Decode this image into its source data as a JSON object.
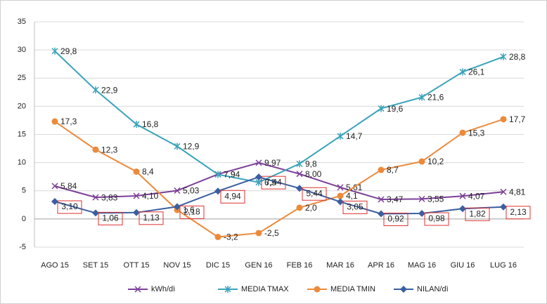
{
  "chart_data": {
    "type": "line",
    "categories": [
      "AGO 15",
      "SET 15",
      "OTT 15",
      "NOV 15",
      "DIC 15",
      "GEN 16",
      "FEB 16",
      "MAR 16",
      "APR 16",
      "MAG 16",
      "GIU 16",
      "LUG 16"
    ],
    "series": [
      {
        "name": "kWh/dì",
        "color": "#7b3f98",
        "marker": "x",
        "values": [
          5.84,
          3.83,
          4.1,
          5.03,
          7.94,
          9.97,
          8.0,
          5.61,
          3.47,
          3.55,
          4.07,
          4.81
        ],
        "value_labels": [
          "5,84",
          "3,83",
          "4,10",
          "5,03",
          "7,94",
          "9,97",
          "8,00",
          "5,61",
          "3,47",
          "3,55",
          "4,07",
          "4,81"
        ]
      },
      {
        "name": "MEDIA TMAX",
        "color": "#3aa3ba",
        "marker": "star",
        "values": [
          29.8,
          22.9,
          16.8,
          12.9,
          7.9,
          6.5,
          9.8,
          14.7,
          19.6,
          21.6,
          26.1,
          28.8
        ],
        "value_labels": [
          "29,8",
          "22,9",
          "16,8",
          "12,9",
          "7,9",
          "6,5",
          "9,8",
          "14,7",
          "19,6",
          "21,6",
          "26,1",
          "28,8"
        ]
      },
      {
        "name": "MEDIA TMIN",
        "color": "#ec8a3c",
        "marker": "circle",
        "values": [
          17.3,
          12.3,
          8.4,
          1.6,
          -3.2,
          -2.5,
          2.0,
          4.1,
          8.7,
          10.2,
          15.3,
          17.7
        ],
        "value_labels": [
          "17,3",
          "12,3",
          "8,4",
          "1,6",
          "-3,2",
          "-2,5",
          "2,0",
          "4,1",
          "8,7",
          "10,2",
          "15,3",
          "17,7"
        ]
      },
      {
        "name": "NILAN/dì",
        "color": "#3a5fa0",
        "marker": "diamond",
        "boxed_labels": true,
        "values": [
          3.1,
          1.06,
          1.13,
          2.18,
          4.94,
          7.44,
          5.44,
          3.05,
          0.92,
          0.98,
          1.82,
          2.13
        ],
        "value_labels": [
          "3,10",
          "1,06",
          "1,13",
          "2,18",
          "4,94",
          "7,44",
          "5,44",
          "3,05",
          "0,92",
          "0,98",
          "1,82",
          "2,13"
        ]
      }
    ],
    "ylim": [
      -5,
      35
    ],
    "yticks": [
      -5,
      0,
      5,
      10,
      15,
      20,
      25,
      30,
      35
    ],
    "grid": true,
    "legend": "bottom"
  }
}
